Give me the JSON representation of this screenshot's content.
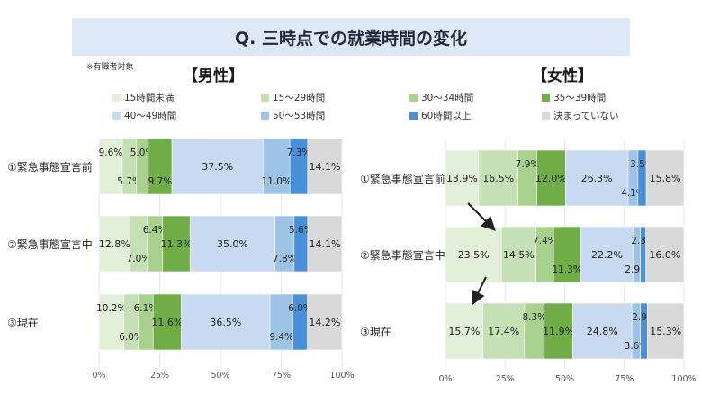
{
  "title": "Q. 三時点での就業時間の変化",
  "note": "※有職者対象",
  "chart_data": [
    {
      "type": "bar",
      "stacked": "100%",
      "orientation": "horizontal",
      "title": "【男性】",
      "categories": [
        "①緊急事態宣言前",
        "②緊急事態宣言中",
        "③現在"
      ],
      "series": [
        {
          "name": "15時間未満",
          "values": [
            9.6,
            12.8,
            10.2
          ],
          "color": "#e2efd9"
        },
        {
          "name": "15～29時間",
          "values": [
            5.7,
            7.0,
            6.0
          ],
          "color": "#c5e0b4"
        },
        {
          "name": "30～34時間",
          "values": [
            5.0,
            6.4,
            6.1
          ],
          "color": "#a9d18e"
        },
        {
          "name": "35～39時間",
          "values": [
            9.7,
            11.3,
            11.6
          ],
          "color": "#70ad47"
        },
        {
          "name": "40～49時間",
          "values": [
            37.5,
            35.0,
            36.5
          ],
          "color": "#c7daf1"
        },
        {
          "name": "50～53時間",
          "values": [
            11.0,
            7.8,
            9.4
          ],
          "color": "#9dc3e6"
        },
        {
          "name": "60時間以上",
          "values": [
            7.3,
            5.6,
            6.0
          ],
          "color": "#4a90d9"
        },
        {
          "name": "決まっていない",
          "values": [
            14.1,
            14.1,
            14.2
          ],
          "color": "#d9d9d9"
        }
      ],
      "xlim": [
        0,
        100
      ],
      "xticks": [
        "0%",
        "25%",
        "50%",
        "75%",
        "100%"
      ]
    },
    {
      "type": "bar",
      "stacked": "100%",
      "orientation": "horizontal",
      "title": "【女性】",
      "categories": [
        "①緊急事態宣言前",
        "②緊急事態宣言中",
        "③現在"
      ],
      "series": [
        {
          "name": "15時間未満",
          "values": [
            13.9,
            23.5,
            15.7
          ],
          "color": "#e2efd9"
        },
        {
          "name": "15～29時間",
          "values": [
            16.5,
            14.5,
            17.4
          ],
          "color": "#c5e0b4"
        },
        {
          "name": "30～34時間",
          "values": [
            7.9,
            7.4,
            8.3
          ],
          "color": "#a9d18e"
        },
        {
          "name": "35～39時間",
          "values": [
            12.0,
            11.3,
            11.9
          ],
          "color": "#70ad47"
        },
        {
          "name": "40～49時間",
          "values": [
            26.3,
            22.2,
            24.8
          ],
          "color": "#c7daf1"
        },
        {
          "name": "50～53時間",
          "values": [
            4.1,
            2.9,
            3.6
          ],
          "color": "#9dc3e6"
        },
        {
          "name": "60時間以上",
          "values": [
            3.5,
            2.3,
            2.9
          ],
          "color": "#4a90d9"
        },
        {
          "name": "決まっていない",
          "values": [
            15.8,
            16.0,
            15.3
          ],
          "color": "#d9d9d9"
        }
      ],
      "xlim": [
        0,
        100
      ],
      "xticks": [
        "0%",
        "25%",
        "50%",
        "75%",
        "100%"
      ]
    }
  ],
  "legend": {
    "male": [
      "15時間未満",
      "15～29時間",
      "40～49時間",
      "50～53時間"
    ],
    "female": [
      "30～34時間",
      "35～39時間",
      "60時間以上",
      "決まっていない"
    ]
  }
}
